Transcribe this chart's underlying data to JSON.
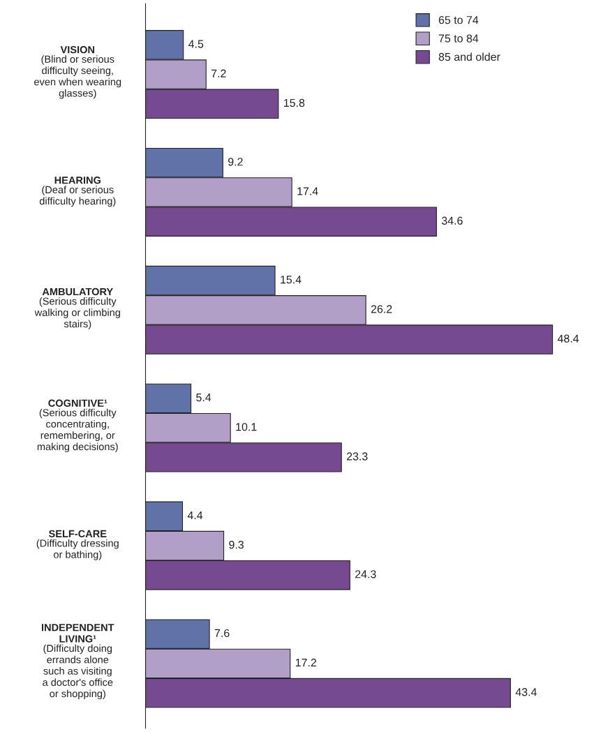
{
  "chart_data": {
    "type": "bar",
    "orientation": "horizontal",
    "categories": [
      "VISION\n(Blind or serious\ndifficulty seeing,\neven when wearing\nglasses)",
      "HEARING\n(Deaf or serious\ndifficulty hearing)",
      "AMBULATORY\n(Serious difficulty\nwalking or climbing\nstairs)",
      "COGNITIVE¹\n(Serious difficulty\nconcentrating,\nremembering, or\nmaking decisions)",
      "SELF-CARE\n(Difficulty dressing\nor bathing)",
      "INDEPENDENT\nLIVING¹\n(Difficulty doing\nerrands alone\nsuch as visiting\na doctor's office\nor shopping)"
    ],
    "series": [
      {
        "name": "65 to 74",
        "color": "#6172a9",
        "values": [
          4.5,
          9.2,
          15.4,
          5.4,
          4.4,
          7.6
        ]
      },
      {
        "name": "75 to 84",
        "color": "#b19fc8",
        "values": [
          7.2,
          17.4,
          26.2,
          10.1,
          9.3,
          17.2
        ]
      },
      {
        "name": "85 and older",
        "color": "#764a90",
        "values": [
          15.8,
          34.6,
          48.4,
          23.3,
          24.3,
          43.4
        ]
      }
    ],
    "data_labels": true,
    "legend": "top right"
  }
}
